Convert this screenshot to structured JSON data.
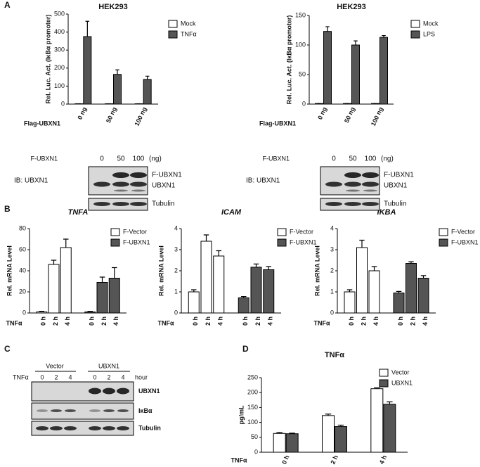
{
  "panels": [
    "A",
    "B",
    "C",
    "D"
  ],
  "chart_data": [
    {
      "type": "bar",
      "title": "HEK293",
      "ylabel": "Rel. Luc. Act. (IκBα promoter)",
      "xlabel": "Flag-UBXN1",
      "categories": [
        "0 ng",
        "50 ng",
        "100 ng"
      ],
      "series": [
        {
          "name": "Mock",
          "color": "#ffffff",
          "values": [
            2,
            2,
            2
          ],
          "errors": [
            0,
            0,
            0
          ]
        },
        {
          "name": "TNFα",
          "color": "#555555",
          "values": [
            375,
            165,
            137
          ],
          "errors": [
            85,
            25,
            18
          ]
        }
      ],
      "ylim": [
        0,
        500
      ],
      "yticks": [
        0,
        100,
        200,
        300,
        400,
        500
      ]
    },
    {
      "type": "bar",
      "title": "HEK293",
      "ylabel": "Rel. Luc. Act. (IκBα promoter)",
      "xlabel": "Flag-UBXN1",
      "categories": [
        "0 ng",
        "50 ng",
        "100 ng"
      ],
      "series": [
        {
          "name": "Mock",
          "color": "#ffffff",
          "values": [
            1,
            1,
            1
          ],
          "errors": [
            0,
            0,
            0
          ]
        },
        {
          "name": "LPS",
          "color": "#555555",
          "values": [
            123,
            100,
            113
          ],
          "errors": [
            8,
            7,
            3
          ]
        }
      ],
      "ylim": [
        0,
        150
      ],
      "yticks": [
        0,
        50,
        100,
        150
      ]
    },
    {
      "type": "bar",
      "title": "TNFA",
      "ylabel": "Rel. mRNA Level",
      "xlabel": "TNFα",
      "categories": [
        "0 h",
        "2 h",
        "4 h"
      ],
      "series": [
        {
          "name": "F-Vector",
          "color": "#ffffff",
          "values": [
            1,
            46,
            62
          ],
          "errors": [
            0.5,
            4,
            8
          ]
        },
        {
          "name": "F-UBXN1",
          "color": "#555555",
          "values": [
            1,
            29,
            33
          ],
          "errors": [
            0.5,
            5,
            10
          ]
        }
      ],
      "ylim": [
        0,
        80
      ],
      "yticks": [
        0,
        20,
        40,
        60,
        80
      ]
    },
    {
      "type": "bar",
      "title": "ICAM",
      "ylabel": "Rel. mRNA Level",
      "xlabel": "TNFα",
      "categories": [
        "0 h",
        "2 h",
        "4 h"
      ],
      "series": [
        {
          "name": "F-Vector",
          "color": "#ffffff",
          "values": [
            1.0,
            3.4,
            2.7
          ],
          "errors": [
            0.1,
            0.3,
            0.25
          ]
        },
        {
          "name": "F-UBXN1",
          "color": "#555555",
          "values": [
            0.72,
            2.17,
            2.05
          ],
          "errors": [
            0.06,
            0.15,
            0.15
          ]
        }
      ],
      "ylim": [
        0,
        4
      ],
      "yticks": [
        0,
        1,
        2,
        3,
        4
      ]
    },
    {
      "type": "bar",
      "title": "IKBA",
      "ylabel": "Rel. mRNA Level",
      "xlabel": "TNFα",
      "categories": [
        "0 h",
        "2 h",
        "4 h"
      ],
      "series": [
        {
          "name": "F-Vector",
          "color": "#ffffff",
          "values": [
            1.0,
            3.1,
            2.0
          ],
          "errors": [
            0.1,
            0.35,
            0.2
          ]
        },
        {
          "name": "F-UBXN1",
          "color": "#555555",
          "values": [
            0.95,
            2.35,
            1.65
          ],
          "errors": [
            0.07,
            0.08,
            0.12
          ]
        }
      ],
      "ylim": [
        0,
        4
      ],
      "yticks": [
        0,
        1,
        2,
        3,
        4
      ]
    },
    {
      "type": "bar",
      "title": "TNFα",
      "ylabel": "pg/mL",
      "xlabel": "TNFα",
      "categories": [
        "0 h",
        "2 h",
        "4 h"
      ],
      "series": [
        {
          "name": "Vector",
          "color": "#ffffff",
          "values": [
            63,
            123,
            213
          ],
          "errors": [
            3,
            5,
            3
          ]
        },
        {
          "name": "UBXN1",
          "color": "#555555",
          "values": [
            62,
            86,
            161
          ],
          "errors": [
            2,
            5,
            8
          ]
        }
      ],
      "ylim": [
        0,
        250
      ],
      "yticks": [
        0,
        50,
        100,
        150,
        200,
        250
      ]
    }
  ],
  "blots": [
    {
      "header": "F-UBXN1",
      "lanes": [
        "0",
        "50",
        "100"
      ],
      "unit": "(ng)",
      "probe": "IB: UBXN1",
      "bands": [
        "F-UBXN1",
        "UBXN1",
        "Tubulin"
      ]
    },
    {
      "header": "F-UBXN1",
      "lanes": [
        "0",
        "50",
        "100"
      ],
      "unit": "(ng)",
      "probe": "IB: UBXN1",
      "bands": [
        "F-UBXN1",
        "UBXN1",
        "Tubulin"
      ]
    },
    {
      "header": "TNFα",
      "groups": [
        "Vector",
        "UBXN1"
      ],
      "lanes": [
        "0",
        "2",
        "4",
        "0",
        "2",
        "4"
      ],
      "unit": "hour",
      "bands": [
        "UBXN1",
        "IκBα",
        "Tubulin"
      ]
    }
  ]
}
